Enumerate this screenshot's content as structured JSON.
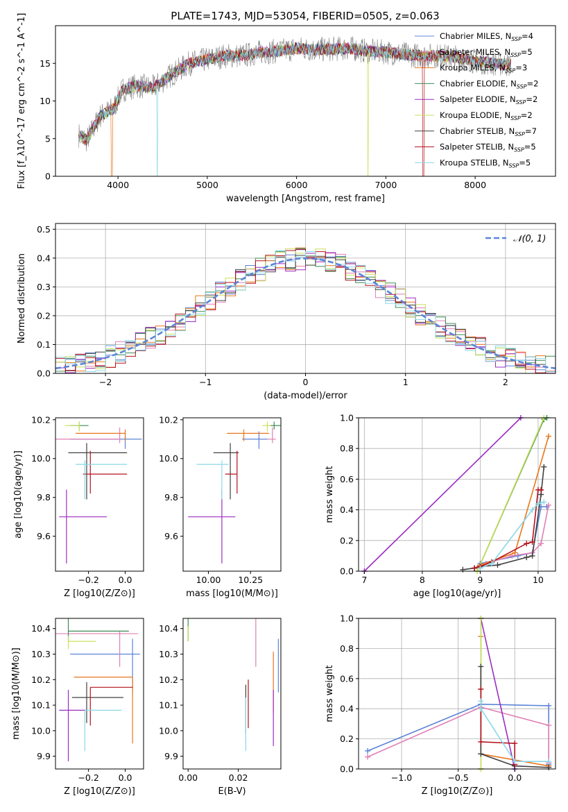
{
  "figure_title": "PLATE=1743, MJD=53054, FIBERID=0505, z=0.063",
  "models": [
    {
      "name": "Chabrier MILES",
      "nssp": "4",
      "color": "#5b84d6"
    },
    {
      "name": "Salpeter MILES",
      "nssp": "5",
      "color": "#e07fb5"
    },
    {
      "name": "Kroupa MILES",
      "nssp": "3",
      "color": "#e8761a"
    },
    {
      "name": "Chabrier ELODIE",
      "nssp": "2",
      "color": "#3c8a57"
    },
    {
      "name": "Salpeter ELODIE",
      "nssp": "2",
      "color": "#9a2bc0"
    },
    {
      "name": "Kroupa ELODIE",
      "nssp": "2",
      "color": "#c8e05a"
    },
    {
      "name": "Chabrier STELIB",
      "nssp": "7",
      "color": "#404040"
    },
    {
      "name": "Salpeter STELIB",
      "nssp": "5",
      "color": "#b3101c"
    },
    {
      "name": "Kroupa STELIB",
      "nssp": "5",
      "color": "#8ad8e6"
    }
  ],
  "chart_data": [
    {
      "id": "spectrum",
      "type": "line",
      "xlabel": "wavelength [Angstrom, rest frame]",
      "ylabel": "Flux [f_λ10^-17 erg cm^-2 s^-1 A^-1]",
      "xlim": [
        3300,
        8900
      ],
      "ylim": [
        0,
        20
      ],
      "xticks": [
        4000,
        5000,
        6000,
        7000,
        8000
      ],
      "yticks": [
        0,
        5,
        10,
        15
      ],
      "continuum_anchors": {
        "x": [
          3560,
          3650,
          3800,
          3950,
          4050,
          4200,
          4400,
          4600,
          4800,
          5000,
          5200,
          5400,
          5600,
          5800,
          6000,
          6200,
          6400,
          6600,
          6800,
          7000,
          7200,
          7400,
          7600,
          7800,
          8000,
          8200,
          8400
        ],
        "y": [
          5.5,
          4.8,
          8.0,
          9.0,
          11.5,
          12.0,
          11.8,
          13.5,
          15.0,
          15.5,
          16.0,
          16.0,
          16.5,
          16.6,
          17.0,
          16.8,
          16.9,
          17.0,
          16.6,
          16.5,
          16.2,
          16.0,
          16.0,
          15.8,
          15.3,
          15.0,
          14.8
        ]
      }
    },
    {
      "id": "residuals",
      "type": "histogram",
      "xlabel": "(data-model)/error",
      "ylabel": "Normed distribution",
      "xlim": [
        -2.5,
        2.5
      ],
      "ylim": [
        0,
        0.52
      ],
      "xticks": [
        -2,
        -1,
        0,
        1,
        2
      ],
      "yticks": [
        0.0,
        0.1,
        0.2,
        0.3,
        0.4,
        0.5
      ],
      "grid": true,
      "legend": "top-right",
      "reference_label": "𝒩(0, 1)",
      "reference_color": "#5b84d6",
      "bin_width": 0.1
    },
    {
      "id": "age_vs_Z",
      "type": "scatter",
      "xlabel": "Z [log10(Z/Z⊙)]",
      "ylabel": "age [log10(age/yr)]",
      "xlim": [
        -0.38,
        0.1
      ],
      "ylim": [
        9.42,
        10.21
      ],
      "xticks": [
        -0.2,
        0.0
      ],
      "yticks": [
        9.6,
        9.8,
        10.0,
        10.2
      ],
      "points": [
        {
          "x": 0.0,
          "xerr": [
            0.3,
            0.09
          ],
          "y": 10.1,
          "yerr": [
            0.05,
            0.04
          ]
        },
        {
          "x": -0.03,
          "xerr": [
            0.35,
            0.0
          ],
          "y": 10.1,
          "yerr": [
            0.02,
            0.06
          ]
        },
        {
          "x": 0.0,
          "xerr": [
            0.27,
            0.0
          ],
          "y": 10.13,
          "yerr": [
            0.04,
            0.02
          ]
        },
        {
          "x": -0.25,
          "xerr": [
            0.05,
            0.05
          ],
          "y": 10.17,
          "yerr": [
            0.02,
            0.02
          ]
        },
        {
          "x": -0.32,
          "xerr": [
            0.04,
            0.22
          ],
          "y": 9.7,
          "yerr": [
            0.24,
            0.14
          ]
        },
        {
          "x": -0.25,
          "xerr": [
            0.08,
            0.0
          ],
          "y": 10.17,
          "yerr": [
            0.03,
            0.02
          ]
        },
        {
          "x": -0.21,
          "xerr": [
            0.1,
            0.22
          ],
          "y": 10.03,
          "yerr": [
            0.24,
            0.05
          ]
        },
        {
          "x": -0.19,
          "xerr": [
            0.04,
            0.2
          ],
          "y": 9.92,
          "yerr": [
            0.1,
            0.12
          ]
        },
        {
          "x": -0.22,
          "xerr": [
            0.05,
            0.23
          ],
          "y": 9.97,
          "yerr": [
            0.18,
            0.02
          ]
        }
      ]
    },
    {
      "id": "age_vs_mass",
      "type": "scatter",
      "xlabel": "mass [log10(M/M⊙)]",
      "ylabel": "",
      "xlim": [
        9.85,
        10.43
      ],
      "ylim": [
        9.42,
        10.21
      ],
      "xticks": [
        10.0,
        10.25
      ],
      "yticks": [
        9.6,
        9.8,
        10.0,
        10.2
      ],
      "points": [
        {
          "x": 10.3,
          "xerr": [
            0.1,
            0.05
          ],
          "y": 10.1,
          "yerr": [
            0.05,
            0.04
          ]
        },
        {
          "x": 10.38,
          "xerr": [
            0.03,
            0.02
          ],
          "y": 10.1,
          "yerr": [
            0.02,
            0.06
          ]
        },
        {
          "x": 10.21,
          "xerr": [
            0.1,
            0.15
          ],
          "y": 10.13,
          "yerr": [
            0.04,
            0.02
          ]
        },
        {
          "x": 10.39,
          "xerr": [
            0.02,
            0.04
          ],
          "y": 10.17,
          "yerr": [
            0.02,
            0.02
          ]
        },
        {
          "x": 10.08,
          "xerr": [
            0.2,
            0.08
          ],
          "y": 9.7,
          "yerr": [
            0.24,
            0.14
          ]
        },
        {
          "x": 10.35,
          "xerr": [
            0.03,
            0.02
          ],
          "y": 10.17,
          "yerr": [
            0.03,
            0.02
          ]
        },
        {
          "x": 10.13,
          "xerr": [
            0.1,
            0.05
          ],
          "y": 10.03,
          "yerr": [
            0.24,
            0.05
          ]
        },
        {
          "x": 10.17,
          "xerr": [
            0.07,
            0.0
          ],
          "y": 9.92,
          "yerr": [
            0.1,
            0.12
          ]
        },
        {
          "x": 10.08,
          "xerr": [
            0.15,
            0.04
          ],
          "y": 9.97,
          "yerr": [
            0.18,
            0.02
          ]
        }
      ]
    },
    {
      "id": "mass_weight_vs_age",
      "type": "line",
      "xlabel": "age [log10(age/yr)]",
      "ylabel": "mass weight",
      "xlim": [
        6.9,
        10.3
      ],
      "ylim": [
        0,
        1
      ],
      "xticks": [
        7,
        8,
        9,
        10
      ],
      "yticks": [
        0.0,
        0.2,
        0.4,
        0.6,
        0.8,
        1.0
      ],
      "grid": true,
      "series": [
        {
          "x": [
            8.95,
            9.0,
            9.65,
            9.9,
            10.05,
            10.15
          ],
          "y": [
            0.02,
            0.05,
            0.1,
            0.12,
            0.42,
            0.42
          ]
        },
        {
          "x": [
            8.95,
            9.1,
            9.55,
            9.9,
            10.05,
            10.18
          ],
          "y": [
            0.02,
            0.05,
            0.1,
            0.12,
            0.18,
            0.43
          ]
        },
        {
          "x": [
            8.9,
            9.0,
            9.6,
            10.18
          ],
          "y": [
            0.02,
            0.04,
            0.12,
            0.88
          ]
        },
        {
          "x": [
            8.95,
            10.1,
            10.15
          ],
          "y": [
            0.0,
            0.99,
            1.0
          ]
        },
        {
          "x": [
            7.0,
            9.7
          ],
          "y": [
            0.0,
            1.0
          ]
        },
        {
          "x": [
            8.95,
            10.1
          ],
          "y": [
            0.0,
            1.0
          ]
        },
        {
          "x": [
            8.7,
            8.9,
            9.0,
            9.3,
            9.8,
            9.9,
            10.05,
            10.1
          ],
          "y": [
            0.01,
            0.02,
            0.03,
            0.04,
            0.09,
            0.1,
            0.5,
            0.68
          ]
        },
        {
          "x": [
            8.9,
            9.0,
            9.2,
            9.8,
            9.9,
            10.0,
            10.05
          ],
          "y": [
            0.02,
            0.03,
            0.06,
            0.18,
            0.19,
            0.53,
            0.53
          ]
        },
        {
          "x": [
            9.0,
            9.2,
            9.9,
            10.0,
            10.1
          ],
          "y": [
            0.02,
            0.05,
            0.4,
            0.44,
            0.45
          ]
        }
      ]
    },
    {
      "id": "mass_vs_Z",
      "type": "scatter",
      "xlabel": "Z [log10(Z/Z⊙)]",
      "ylabel": "mass [log10(M/M⊙)]",
      "xlim": [
        -0.38,
        0.1
      ],
      "ylim": [
        9.85,
        10.44
      ],
      "xticks": [
        -0.2,
        0.0
      ],
      "yticks": [
        9.9,
        10.0,
        10.1,
        10.2,
        10.3,
        10.4
      ],
      "points": [
        {
          "x": 0.04,
          "xerr": [
            0.34,
            0.04
          ],
          "y": 10.3,
          "yerr": [
            0.15,
            0.06
          ]
        },
        {
          "x": -0.03,
          "xerr": [
            0.35,
            0.1
          ],
          "y": 10.38,
          "yerr": [
            0.13,
            0.01
          ]
        },
        {
          "x": 0.04,
          "xerr": [
            0.32,
            0.0
          ],
          "y": 10.21,
          "yerr": [
            0.26,
            0.0
          ]
        },
        {
          "x": -0.31,
          "xerr": [
            0.0,
            0.33
          ],
          "y": 10.39,
          "yerr": [
            0.04,
            0.05
          ]
        },
        {
          "x": -0.31,
          "xerr": [
            0.05,
            0.1
          ],
          "y": 10.08,
          "yerr": [
            0.2,
            0.08
          ]
        },
        {
          "x": -0.31,
          "xerr": [
            0.0,
            0.15
          ],
          "y": 10.35,
          "yerr": [
            0.03,
            0.02
          ]
        },
        {
          "x": -0.21,
          "xerr": [
            0.08,
            0.2
          ],
          "y": 10.13,
          "yerr": [
            0.1,
            0.06
          ]
        },
        {
          "x": -0.19,
          "xerr": [
            0.0,
            0.23
          ],
          "y": 10.17,
          "yerr": [
            0.15,
            0.0
          ]
        },
        {
          "x": -0.22,
          "xerr": [
            0.0,
            0.2
          ],
          "y": 10.08,
          "yerr": [
            0.16,
            0.0
          ]
        }
      ]
    },
    {
      "id": "mass_vs_ebv",
      "type": "scatter",
      "xlabel": "E(B-V)",
      "ylabel": "",
      "xlim": [
        -0.002,
        0.037
      ],
      "ylim": [
        9.85,
        10.44
      ],
      "xticks": [
        0.0,
        0.02
      ],
      "xtick_labels": [
        "0.00",
        "0.02"
      ],
      "yticks": [
        9.9,
        10.0,
        10.1,
        10.2,
        10.3,
        10.4
      ],
      "points": [
        {
          "x": 0.036,
          "xerr": [
            0,
            0
          ],
          "y": 10.26,
          "yerr": [
            0.11,
            0.1
          ]
        },
        {
          "x": 0.027,
          "xerr": [
            0,
            0
          ],
          "y": 10.35,
          "yerr": [
            0.1,
            0.09
          ]
        },
        {
          "x": 0.034,
          "xerr": [
            0,
            0
          ],
          "y": 10.21,
          "yerr": [
            0.14,
            0.1
          ]
        },
        {
          "x": 0.0,
          "xerr": [
            0,
            0
          ],
          "y": 10.39,
          "yerr": [
            0.04,
            0.05
          ]
        },
        {
          "x": 0.034,
          "xerr": [
            0,
            0
          ],
          "y": 10.08,
          "yerr": [
            0.14,
            0.08
          ]
        },
        {
          "x": 0.0,
          "xerr": [
            0,
            0
          ],
          "y": 10.38,
          "yerr": [
            0.03,
            0.03
          ]
        },
        {
          "x": 0.023,
          "xerr": [
            0,
            0
          ],
          "y": 10.11,
          "yerr": [
            0.12,
            0.07
          ]
        },
        {
          "x": 0.024,
          "xerr": [
            0,
            0
          ],
          "y": 10.13,
          "yerr": [
            0.12,
            0.07
          ]
        },
        {
          "x": 0.023,
          "xerr": [
            0,
            0
          ],
          "y": 10.03,
          "yerr": [
            0.11,
            0.1
          ]
        }
      ]
    },
    {
      "id": "mass_weight_vs_Z",
      "type": "line",
      "xlabel": "Z [log10(Z/Z⊙)]",
      "ylabel": "mass weight",
      "xlim": [
        -1.38,
        0.36
      ],
      "ylim": [
        0,
        1
      ],
      "xticks": [
        -1.0,
        -0.5,
        0.0
      ],
      "yticks": [
        0.0,
        0.2,
        0.4,
        0.6,
        0.8,
        1.0
      ],
      "grid": true,
      "series": [
        {
          "x": [
            -1.3,
            -0.3,
            0.3,
            0.3
          ],
          "y": [
            0.12,
            0.43,
            0.42,
            0.03
          ]
        },
        {
          "x": [
            -1.3,
            -0.3,
            0.3,
            0.3
          ],
          "y": [
            0.08,
            0.41,
            0.29,
            0.04
          ]
        },
        {
          "x": [
            -0.3,
            -0.3,
            0.3
          ],
          "y": [
            0.88,
            0.1,
            0.02
          ]
        },
        {
          "x": [
            -0.3,
            -0.3
          ],
          "y": [
            0.0,
            1.0
          ]
        },
        {
          "x": [
            -0.3,
            0.0
          ],
          "y": [
            1.0,
            0.0
          ]
        },
        {
          "x": [
            -0.3,
            -0.3
          ],
          "y": [
            0.0,
            1.0
          ]
        },
        {
          "x": [
            -0.3,
            -0.3,
            0.0,
            0.3
          ],
          "y": [
            0.68,
            0.1,
            0.02,
            0.01
          ]
        },
        {
          "x": [
            -0.3,
            -0.3,
            0.0,
            0.0
          ],
          "y": [
            0.53,
            0.18,
            0.17,
            0.03
          ]
        },
        {
          "x": [
            -0.3,
            -0.3,
            0.0,
            0.3
          ],
          "y": [
            0.45,
            0.4,
            0.05,
            0.05
          ]
        }
      ]
    }
  ]
}
